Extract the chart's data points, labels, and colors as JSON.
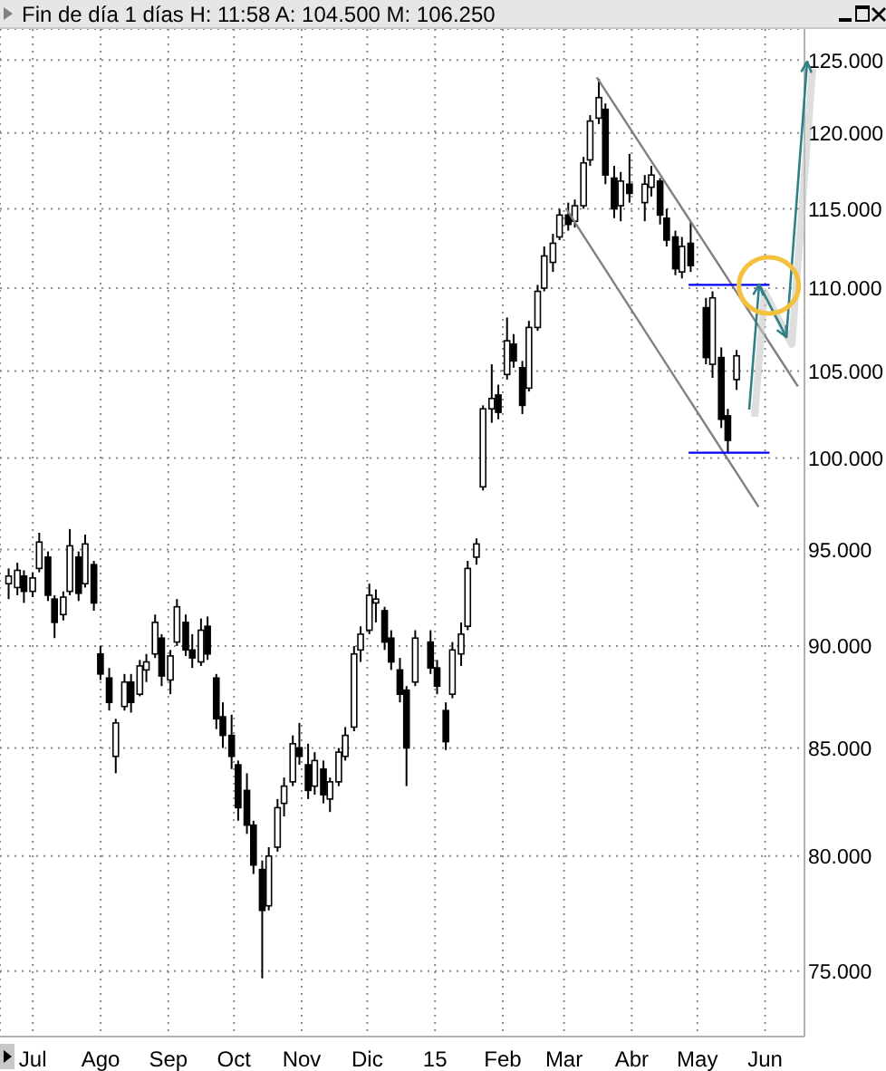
{
  "chart_data": {
    "type": "candlestick",
    "title": "Fin de día 1 días  H: 11:58  A: 104.500  M: 106.250",
    "color": "#000000",
    "x": [
      "2014-06-20",
      "2014-06-24",
      "2014-06-27",
      "2014-07-01",
      "2014-07-04",
      "2014-07-08",
      "2014-07-11",
      "2014-07-15",
      "2014-07-18",
      "2014-07-22",
      "2014-07-25",
      "2014-07-29",
      "2014-08-01",
      "2014-08-05",
      "2014-08-08",
      "2014-08-12",
      "2014-08-15",
      "2014-08-19",
      "2014-08-22",
      "2014-08-26",
      "2014-08-29",
      "2014-09-02",
      "2014-09-05",
      "2014-09-09",
      "2014-09-12",
      "2014-09-16",
      "2014-09-19",
      "2014-09-23",
      "2014-09-26",
      "2014-09-30",
      "2014-10-03",
      "2014-10-07",
      "2014-10-10",
      "2014-10-14",
      "2014-10-17",
      "2014-10-21",
      "2014-10-24",
      "2014-10-28",
      "2014-10-31",
      "2014-11-04",
      "2014-11-07",
      "2014-11-11",
      "2014-11-14",
      "2014-11-18",
      "2014-11-21",
      "2014-11-25",
      "2014-11-28",
      "2014-12-02",
      "2014-12-05",
      "2014-12-09",
      "2014-12-12",
      "2014-12-16",
      "2014-12-19",
      "2014-12-23",
      "2014-12-30",
      "2015-01-02",
      "2015-01-06",
      "2015-01-09",
      "2015-01-13",
      "2015-01-16",
      "2015-01-20",
      "2015-01-23",
      "2015-01-27",
      "2015-01-30",
      "2015-02-03",
      "2015-02-06",
      "2015-02-10",
      "2015-02-13",
      "2015-02-17",
      "2015-02-20",
      "2015-02-24",
      "2015-02-27",
      "2015-03-03",
      "2015-03-06",
      "2015-03-10",
      "2015-03-13",
      "2015-03-17",
      "2015-03-20",
      "2015-03-24",
      "2015-03-27",
      "2015-03-31",
      "2015-04-07",
      "2015-04-10",
      "2015-04-14",
      "2015-04-17",
      "2015-04-21",
      "2015-04-24",
      "2015-04-28",
      "2015-05-05",
      "2015-05-08",
      "2015-05-12",
      "2015-05-15",
      "2015-05-19"
    ],
    "ohlc": [
      [
        93.2,
        94.0,
        92.4,
        93.6
      ],
      [
        93.0,
        94.3,
        92.6,
        93.9
      ],
      [
        93.6,
        93.9,
        92.2,
        92.8
      ],
      [
        92.8,
        93.8,
        92.5,
        93.5
      ],
      [
        94.0,
        95.9,
        93.8,
        95.4
      ],
      [
        94.6,
        94.9,
        92.3,
        92.6
      ],
      [
        92.4,
        92.6,
        90.4,
        91.2
      ],
      [
        91.6,
        92.8,
        91.3,
        92.5
      ],
      [
        92.8,
        96.1,
        92.6,
        95.2
      ],
      [
        94.6,
        94.9,
        92.3,
        92.7
      ],
      [
        93.2,
        95.8,
        93.0,
        95.3
      ],
      [
        94.2,
        94.4,
        91.8,
        92.2
      ],
      [
        89.6,
        90.0,
        88.3,
        88.6
      ],
      [
        88.4,
        88.9,
        86.8,
        87.2
      ],
      [
        84.6,
        86.4,
        83.8,
        86.2
      ],
      [
        87.0,
        88.6,
        86.8,
        88.2
      ],
      [
        88.2,
        88.6,
        86.7,
        87.2
      ],
      [
        87.6,
        89.3,
        87.5,
        89.0
      ],
      [
        88.8,
        89.6,
        88.2,
        89.2
      ],
      [
        89.6,
        91.6,
        89.4,
        91.2
      ],
      [
        90.4,
        90.6,
        88.0,
        88.5
      ],
      [
        88.3,
        89.8,
        87.6,
        89.5
      ],
      [
        90.2,
        92.4,
        90.0,
        92.0
      ],
      [
        91.2,
        91.6,
        89.5,
        89.8
      ],
      [
        89.8,
        90.6,
        88.9,
        89.4
      ],
      [
        89.2,
        91.4,
        89.0,
        90.8
      ],
      [
        91.0,
        91.5,
        89.3,
        89.6
      ],
      [
        88.4,
        88.6,
        85.9,
        86.4
      ],
      [
        86.5,
        87.2,
        85.0,
        85.6
      ],
      [
        85.6,
        86.6,
        84.0,
        84.6
      ],
      [
        84.2,
        84.4,
        81.6,
        82.2
      ],
      [
        83.0,
        83.8,
        81.0,
        81.4
      ],
      [
        81.4,
        81.6,
        79.2,
        79.6
      ],
      [
        79.4,
        79.8,
        74.7,
        77.6
      ],
      [
        77.8,
        80.4,
        77.6,
        80.0
      ],
      [
        80.4,
        82.6,
        80.2,
        82.2
      ],
      [
        82.4,
        83.6,
        81.8,
        83.2
      ],
      [
        83.4,
        85.6,
        83.2,
        85.2
      ],
      [
        85.0,
        86.2,
        84.2,
        84.6
      ],
      [
        84.2,
        85.2,
        82.6,
        83.0
      ],
      [
        83.2,
        84.8,
        82.8,
        84.4
      ],
      [
        84.0,
        84.4,
        82.4,
        82.8
      ],
      [
        82.6,
        83.6,
        82.0,
        83.4
      ],
      [
        83.4,
        85.0,
        83.2,
        84.8
      ],
      [
        84.6,
        86.0,
        84.4,
        85.6
      ],
      [
        86.0,
        90.0,
        85.8,
        89.6
      ],
      [
        89.8,
        91.0,
        89.2,
        90.6
      ],
      [
        90.8,
        93.2,
        90.6,
        92.6
      ],
      [
        92.2,
        92.9,
        91.2,
        92.4
      ],
      [
        91.8,
        92.0,
        89.8,
        90.2
      ],
      [
        90.4,
        90.8,
        88.8,
        89.2
      ],
      [
        88.8,
        89.4,
        87.2,
        87.6
      ],
      [
        87.8,
        88.0,
        83.2,
        85.0
      ],
      [
        88.2,
        90.8,
        88.0,
        90.4
      ],
      [
        90.2,
        90.8,
        88.6,
        88.9
      ],
      [
        88.9,
        89.3,
        87.6,
        88.0
      ],
      [
        86.8,
        87.2,
        84.9,
        85.3
      ],
      [
        87.6,
        90.2,
        87.4,
        89.8
      ],
      [
        89.6,
        91.2,
        89.0,
        90.6
      ],
      [
        91.0,
        94.4,
        90.8,
        94.0
      ],
      [
        94.6,
        95.6,
        94.2,
        95.3
      ],
      [
        98.4,
        103.0,
        98.2,
        102.8
      ],
      [
        102.8,
        105.4,
        102.0,
        103.4
      ],
      [
        103.6,
        104.2,
        102.2,
        102.6
      ],
      [
        104.8,
        108.2,
        104.5,
        106.8
      ],
      [
        106.6,
        107.2,
        105.2,
        105.6
      ],
      [
        105.2,
        105.6,
        102.5,
        103.0
      ],
      [
        104.0,
        108.0,
        103.8,
        107.6
      ],
      [
        107.6,
        110.2,
        107.4,
        109.8
      ],
      [
        110.0,
        112.6,
        109.8,
        112.0
      ],
      [
        111.6,
        113.4,
        111.0,
        112.8
      ],
      [
        113.2,
        115.0,
        113.0,
        114.6
      ],
      [
        114.6,
        115.4,
        113.6,
        114.0
      ],
      [
        114.2,
        115.6,
        113.8,
        115.2
      ],
      [
        115.2,
        118.4,
        115.0,
        118.0
      ],
      [
        118.2,
        121.2,
        117.8,
        120.8
      ],
      [
        121.0,
        123.7,
        120.6,
        122.4
      ],
      [
        121.6,
        122.0,
        116.6,
        117.2
      ],
      [
        117.0,
        117.8,
        114.4,
        115.0
      ],
      [
        115.2,
        117.4,
        114.2,
        116.8
      ],
      [
        116.6,
        118.6,
        115.4,
        116.0
      ],
      [
        115.4,
        117.2,
        114.2,
        116.6
      ],
      [
        116.4,
        117.8,
        115.8,
        117.2
      ],
      [
        116.8,
        117.0,
        114.0,
        114.6
      ],
      [
        114.4,
        115.0,
        112.6,
        113.0
      ],
      [
        113.2,
        113.6,
        110.8,
        111.2
      ],
      [
        111.0,
        113.2,
        110.6,
        112.6
      ],
      [
        112.8,
        114.2,
        111.0,
        111.4
      ],
      [
        108.8,
        109.4,
        105.4,
        105.8
      ],
      [
        105.4,
        109.8,
        104.6,
        109.4
      ],
      [
        105.8,
        106.4,
        101.7,
        102.2
      ],
      [
        102.4,
        102.8,
        100.3,
        101.0
      ],
      [
        104.5,
        106.25,
        103.9,
        105.9
      ]
    ],
    "series": [
      {
        "type": "line",
        "x": [
          "2015-03-16",
          "2015-06-16"
        ],
        "values": [
          123.8,
          104.1
        ],
        "color": "#808080"
      },
      {
        "type": "line",
        "x": [
          "2015-03-02",
          "2015-05-29"
        ],
        "values": [
          115.0,
          97.3
        ],
        "color": "#808080"
      },
      {
        "type": "line",
        "x": [
          "2015-04-27",
          "2015-06-03"
        ],
        "values": [
          110.2,
          110.2
        ],
        "color": "#0000ff"
      },
      {
        "type": "line",
        "x": [
          "2015-04-27",
          "2015-06-03"
        ],
        "values": [
          100.3,
          100.3
        ],
        "color": "#0000ff"
      }
    ],
    "xlim": [
      "2014-06-16",
      "2015-06-19"
    ],
    "xticks": [
      {
        "value": "2014-07-01",
        "label": "Jul"
      },
      {
        "value": "2014-08-01",
        "label": "Ago"
      },
      {
        "value": "2014-09-01",
        "label": "Sep"
      },
      {
        "value": "2014-10-01",
        "label": "Oct"
      },
      {
        "value": "2014-11-01",
        "label": "Nov"
      },
      {
        "value": "2014-12-01",
        "label": "Dic"
      },
      {
        "value": "2015-01-01",
        "label": "15"
      },
      {
        "value": "2015-02-01",
        "label": "Feb"
      },
      {
        "value": "2015-03-01",
        "label": "Mar"
      },
      {
        "value": "2015-04-01",
        "label": "Abr"
      },
      {
        "value": "2015-05-01",
        "label": "May"
      },
      {
        "value": "2015-06-01",
        "label": "Jun"
      }
    ],
    "ylim": [
      72.3,
      127.2
    ],
    "yticks": [
      {
        "value": 75,
        "label": "75.000"
      },
      {
        "value": 80,
        "label": "80.000"
      },
      {
        "value": 85,
        "label": "85.000"
      },
      {
        "value": 90,
        "label": "90.000"
      },
      {
        "value": 95,
        "label": "95.000"
      },
      {
        "value": 100,
        "label": "100.000"
      },
      {
        "value": 105,
        "label": "105.000"
      },
      {
        "value": 110,
        "label": "110.000"
      },
      {
        "value": 115,
        "label": "115.000"
      },
      {
        "value": 120,
        "label": "120.000"
      },
      {
        "value": 125,
        "label": "125.000"
      }
    ],
    "log": true,
    "grid": true
  }
}
